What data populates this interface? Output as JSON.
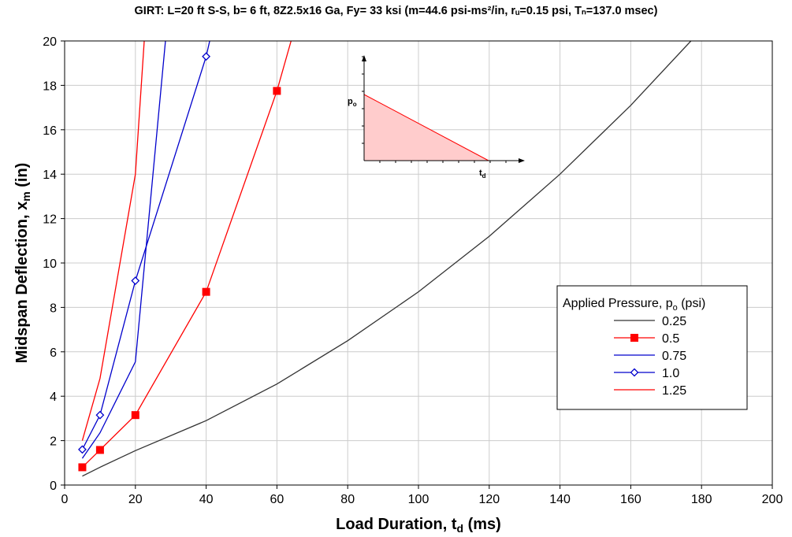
{
  "chart_data": {
    "type": "line",
    "title": "GIRT: L=20 ft S-S, b= 6 ft, 8Z2.5x16 Ga, Fy= 33 ksi (m=44.6 psi-ms²/in, rᵤ=0.15 psi, Tₙ=137.0 msec)",
    "xlabel": "Load Duration, t",
    "xlabel_sub": "d",
    "xlabel_tail": " (ms)",
    "ylabel": "Midspan Deflection, x",
    "ylabel_sub": "m",
    "ylabel_tail": " (in)",
    "xlim": [
      0,
      200
    ],
    "ylim": [
      0,
      20
    ],
    "xticks": [
      0,
      20,
      40,
      60,
      80,
      100,
      120,
      140,
      160,
      180,
      200
    ],
    "yticks": [
      0,
      2,
      4,
      6,
      8,
      10,
      12,
      14,
      16,
      18,
      20
    ],
    "grid": true,
    "legend": {
      "title": "Applied Pressure, p",
      "title_sub": "o",
      "title_tail": " (psi)",
      "placement": "right"
    },
    "series": [
      {
        "name": "0.25",
        "color": "#333333",
        "marker": "none",
        "x": [
          5,
          10,
          20,
          40,
          60,
          80,
          100,
          120,
          140,
          160,
          177
        ],
        "y": [
          0.4,
          0.8,
          1.55,
          2.9,
          4.55,
          6.5,
          8.7,
          11.2,
          14.0,
          17.1,
          20.0
        ]
      },
      {
        "name": "0.5",
        "color": "#ff0000",
        "marker": "square",
        "x": [
          5,
          10,
          20,
          40,
          60,
          64
        ],
        "y": [
          0.8,
          1.58,
          3.15,
          8.7,
          17.75,
          20.0
        ]
      },
      {
        "name": "0.75",
        "color": "#0000cc",
        "marker": "none",
        "x": [
          5,
          10,
          20,
          28.5
        ],
        "y": [
          1.2,
          2.35,
          5.55,
          20.0
        ]
      },
      {
        "name": "1.0",
        "color": "#0000cc",
        "marker": "diamond",
        "x": [
          5,
          10,
          20,
          40,
          41
        ],
        "y": [
          1.6,
          3.15,
          9.2,
          19.3,
          20.0
        ]
      },
      {
        "name": "1.25",
        "color": "#ff0000",
        "marker": "none",
        "x": [
          5,
          10,
          20,
          22.5
        ],
        "y": [
          2.0,
          4.8,
          14.0,
          20.0
        ]
      }
    ],
    "inset": {
      "label_p": "p",
      "label_p_sub": "o",
      "label_t": "t",
      "label_t_sub": "d",
      "fill": "#ffcccc",
      "line": "#ff0000"
    }
  }
}
